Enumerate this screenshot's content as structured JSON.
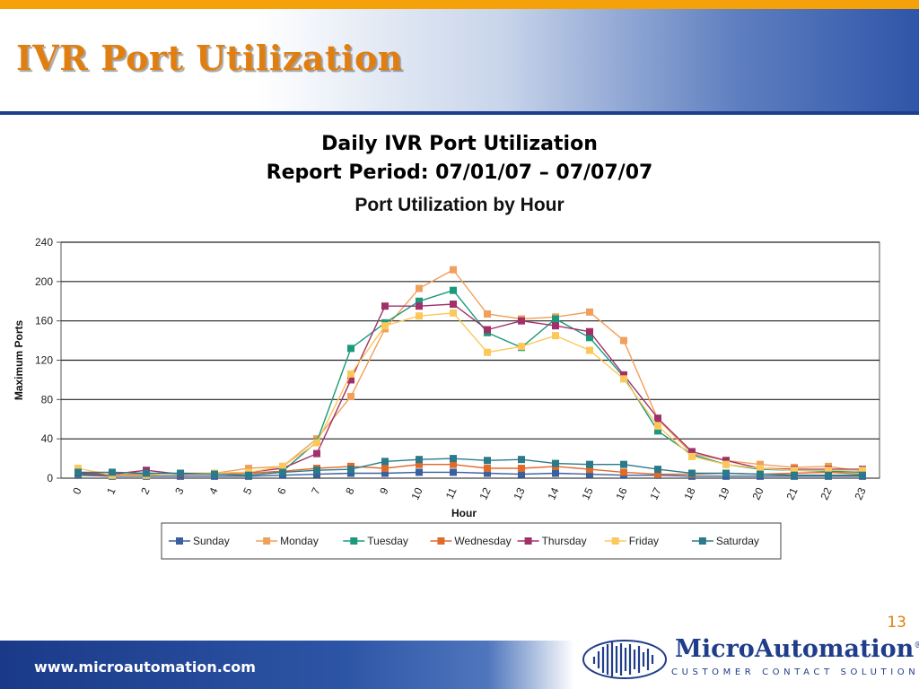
{
  "slide": {
    "title": "IVR Port Utilization",
    "heading_line1": "Daily IVR Port Utilization",
    "heading_line2": "Report Period: 07/01/07 – 07/07/07",
    "page_number": "13",
    "footer_url": "www.microautomation.com",
    "logo_name": "MicroAutomation",
    "logo_mark": "®",
    "logo_tagline": "CUSTOMER CONTACT SOLUTIONS",
    "accent_color": "#e07f10",
    "brand_color": "#1f3d8a"
  },
  "chart_data": {
    "type": "line",
    "title": "Port Utilization by Hour",
    "xlabel": "Hour",
    "ylabel": "Maximum Ports",
    "ylim": [
      0,
      240
    ],
    "yticks": [
      0,
      40,
      80,
      120,
      160,
      200,
      240
    ],
    "grid": true,
    "legend_position": "bottom",
    "x": [
      "0",
      "1",
      "2",
      "3",
      "4",
      "5",
      "6",
      "7",
      "8",
      "9",
      "10",
      "11",
      "12",
      "13",
      "14",
      "15",
      "16",
      "17",
      "18",
      "19",
      "20",
      "21",
      "22",
      "23"
    ],
    "series": [
      {
        "name": "Sunday",
        "color": "#3a5f9e",
        "values": [
          3,
          2,
          2,
          2,
          2,
          2,
          3,
          4,
          5,
          5,
          6,
          6,
          5,
          4,
          5,
          4,
          3,
          3,
          2,
          2,
          2,
          2,
          2,
          2
        ]
      },
      {
        "name": "Monday",
        "color": "#f0a05a",
        "values": [
          6,
          4,
          3,
          5,
          5,
          10,
          12,
          40,
          83,
          152,
          193,
          212,
          167,
          162,
          164,
          169,
          140,
          60,
          25,
          18,
          14,
          11,
          12,
          7
        ]
      },
      {
        "name": "Tuesday",
        "color": "#1a9a7a",
        "values": [
          4,
          3,
          4,
          4,
          5,
          5,
          7,
          37,
          132,
          158,
          180,
          191,
          148,
          133,
          162,
          143,
          103,
          48,
          24,
          14,
          9,
          8,
          7,
          6
        ]
      },
      {
        "name": "Wednesday",
        "color": "#e06a2a",
        "values": [
          5,
          3,
          5,
          4,
          4,
          5,
          7,
          10,
          12,
          10,
          14,
          14,
          10,
          10,
          12,
          9,
          6,
          4,
          4,
          5,
          4,
          5,
          6,
          4
        ]
      },
      {
        "name": "Thursday",
        "color": "#a0306a",
        "values": [
          5,
          4,
          8,
          4,
          5,
          6,
          10,
          25,
          100,
          175,
          175,
          177,
          151,
          160,
          155,
          149,
          105,
          61,
          27,
          18,
          10,
          9,
          9,
          9
        ]
      },
      {
        "name": "Friday",
        "color": "#fcc85a",
        "values": [
          10,
          3,
          3,
          5,
          5,
          6,
          12,
          36,
          106,
          155,
          165,
          168,
          128,
          134,
          145,
          130,
          101,
          53,
          22,
          14,
          10,
          8,
          8,
          8
        ]
      },
      {
        "name": "Saturday",
        "color": "#2a7a8a",
        "values": [
          6,
          6,
          5,
          5,
          4,
          3,
          6,
          8,
          9,
          17,
          19,
          20,
          18,
          19,
          15,
          14,
          14,
          9,
          5,
          5,
          4,
          3,
          3,
          3
        ]
      }
    ]
  }
}
